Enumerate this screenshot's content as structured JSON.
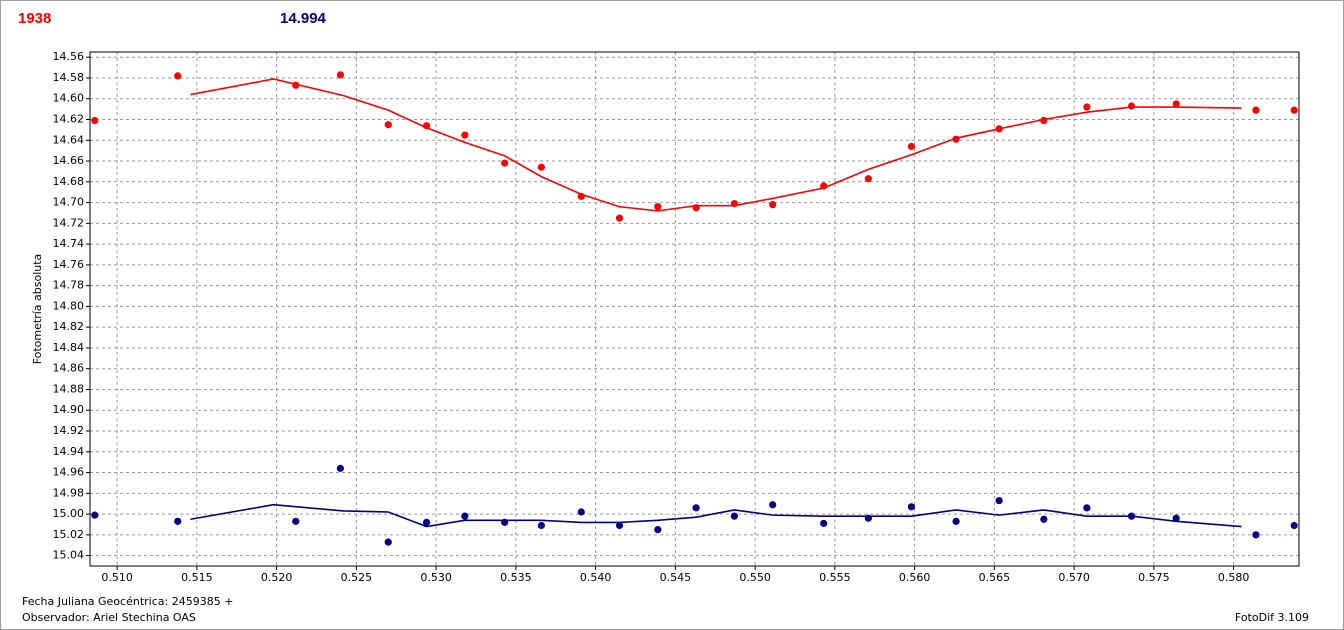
{
  "chart_data": {
    "type": "scatter",
    "readouts": [
      {
        "text": "1938",
        "color": "#ff0000"
      },
      {
        "text": "14.994",
        "color": "#000080"
      }
    ],
    "y_label": "Fotometría absoluta",
    "footer_left": [
      "Fecha Juliana Geocéntrica: 2459385 +",
      "Observador: Ariel Stechina OAS"
    ],
    "footer_right": "FotoDif 3.109",
    "xlim": [
      0.5083,
      0.5841
    ],
    "ylim": [
      14.555,
      15.05
    ],
    "y_inverted": true,
    "grid": true,
    "xticks": [
      {
        "value": 0.51,
        "label": "0.510"
      },
      0.515,
      {
        "value": 0.52,
        "label": "0.520"
      },
      0.525,
      {
        "value": 0.53,
        "label": "0.530"
      },
      0.535,
      {
        "value": 0.54,
        "label": "0.540"
      },
      0.545,
      {
        "value": 0.55,
        "label": "0.550"
      },
      0.555,
      {
        "value": 0.56,
        "label": "0.560"
      },
      0.565,
      {
        "value": 0.57,
        "label": "0.570"
      },
      0.575,
      {
        "value": 0.58,
        "label": "0.580"
      }
    ],
    "yticks": [
      14.56,
      14.58,
      {
        "value": 14.6,
        "label": "14.60"
      },
      14.62,
      14.64,
      14.66,
      14.68,
      {
        "value": 14.7,
        "label": "14.70"
      },
      14.72,
      14.74,
      14.76,
      14.78,
      {
        "value": 14.8,
        "label": "14.80"
      },
      14.82,
      14.84,
      14.86,
      14.88,
      {
        "value": 14.9,
        "label": "14.90"
      },
      14.92,
      14.94,
      14.96,
      14.98,
      {
        "value": 15.0,
        "label": "15.00"
      },
      15.02,
      15.04
    ],
    "series": [
      {
        "mode": "markers",
        "color": "#ff0000",
        "x": [
          0.5086,
          0.5138,
          0.5212,
          0.524,
          0.527,
          0.5294,
          0.5318,
          0.5343,
          0.5366,
          0.5391,
          0.5415,
          0.5439,
          0.5463,
          0.5487,
          0.5511,
          0.5543,
          0.5571,
          0.5598,
          0.5626,
          0.5653,
          0.5681,
          0.5708,
          0.5736,
          0.5764,
          0.5814,
          0.5838
        ],
        "values": [
          14.621,
          14.578,
          14.587,
          14.577,
          14.625,
          14.626,
          14.635,
          14.662,
          14.666,
          14.694,
          14.715,
          14.704,
          14.705,
          14.701,
          14.702,
          14.684,
          14.677,
          14.646,
          14.639,
          14.629,
          14.621,
          14.608,
          14.607,
          14.605,
          14.611,
          14.611
        ]
      },
      {
        "mode": "line",
        "color": "#ff0000",
        "x": [
          0.5146,
          0.5198,
          0.5242,
          0.527,
          0.5294,
          0.5318,
          0.5343,
          0.5366,
          0.5391,
          0.5415,
          0.5439,
          0.5463,
          0.5487,
          0.5511,
          0.5543,
          0.5571,
          0.5598,
          0.5626,
          0.5653,
          0.5681,
          0.5708,
          0.5736,
          0.5764,
          0.5805
        ],
        "values": [
          14.596,
          14.581,
          14.597,
          14.611,
          14.628,
          14.642,
          14.655,
          14.675,
          14.692,
          14.704,
          14.708,
          14.703,
          14.703,
          14.696,
          14.686,
          14.668,
          14.654,
          14.638,
          14.629,
          14.62,
          14.613,
          14.608,
          14.608,
          14.609
        ]
      },
      {
        "mode": "markers",
        "color": "#000080",
        "x": [
          0.5086,
          0.5138,
          0.5212,
          0.524,
          0.527,
          0.5294,
          0.5318,
          0.5343,
          0.5366,
          0.5391,
          0.5415,
          0.5439,
          0.5463,
          0.5487,
          0.5511,
          0.5543,
          0.5571,
          0.5598,
          0.5626,
          0.5653,
          0.5681,
          0.5708,
          0.5736,
          0.5764,
          0.5814,
          0.5838
        ],
        "values": [
          15.001,
          15.007,
          15.007,
          14.956,
          15.027,
          15.008,
          15.002,
          15.008,
          15.011,
          14.998,
          15.011,
          15.015,
          14.994,
          15.002,
          14.991,
          15.009,
          15.004,
          14.993,
          15.007,
          14.987,
          15.005,
          14.994,
          15.002,
          15.004,
          15.02,
          15.011
        ]
      },
      {
        "mode": "line",
        "color": "#000080",
        "x": [
          0.5146,
          0.5198,
          0.5242,
          0.527,
          0.5294,
          0.5318,
          0.5343,
          0.5366,
          0.5391,
          0.5415,
          0.5439,
          0.5463,
          0.5487,
          0.5511,
          0.5543,
          0.5571,
          0.5598,
          0.5626,
          0.5653,
          0.5681,
          0.5708,
          0.5736,
          0.5764,
          0.5805
        ],
        "values": [
          15.005,
          14.991,
          14.997,
          14.998,
          15.012,
          15.006,
          15.006,
          15.006,
          15.008,
          15.008,
          15.006,
          15.003,
          14.996,
          15.001,
          15.002,
          15.002,
          15.002,
          14.996,
          15.001,
          14.996,
          15.002,
          15.002,
          15.007,
          15.012
        ]
      }
    ]
  }
}
